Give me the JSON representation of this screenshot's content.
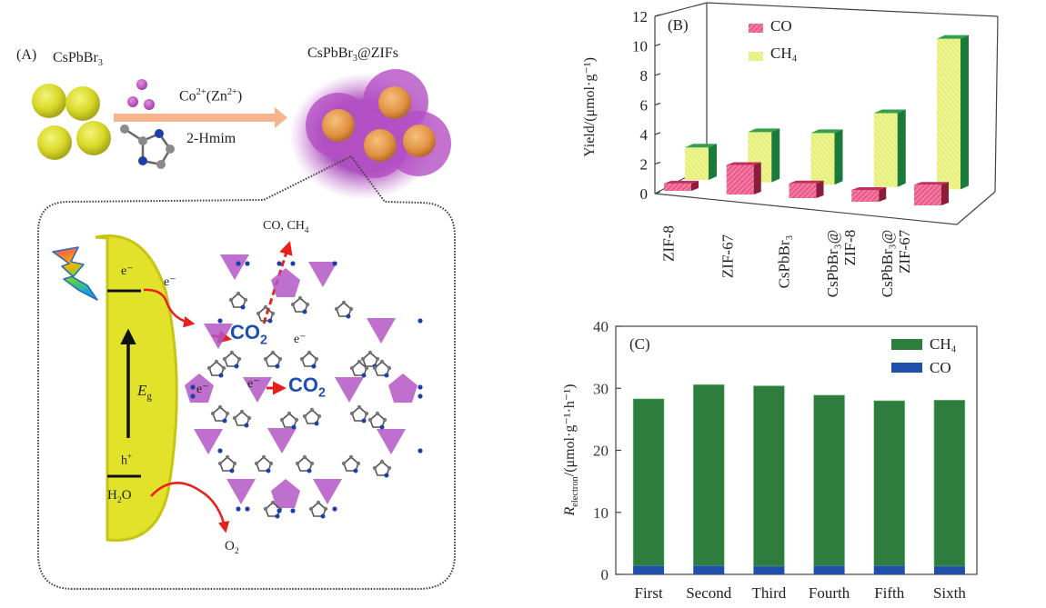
{
  "panel_a": {
    "label": "(A)",
    "reactant_label": "CsPbBr",
    "reactant_sub": "3",
    "product_label_pre": "CsPbBr",
    "product_sub": "3",
    "product_label_post": "@ZIFs",
    "reagent_metal": "Co",
    "reagent_metal_sup": "2+",
    "reagent_metal_alt_pre": "(Zn",
    "reagent_metal_alt_sup": "2+",
    "reagent_metal_alt_post": ")",
    "reagent_ligand": "2-Hmim",
    "mechanism": {
      "products_label_pre": "CO, CH",
      "products_sub": "4",
      "electron_cb": "e⁻",
      "electron_transfer": "e⁻",
      "electron_mof_1": "e⁻",
      "electron_mof_2": "e⁻",
      "electron_mof_3": "e⁻",
      "co2_1": "CO",
      "co2_1_sub": "2",
      "co2_2": "CO",
      "co2_2_sub": "2",
      "bandgap_symbol": "E",
      "bandgap_sub": "g",
      "hole": "h",
      "hole_sup": "+",
      "water_pre": "H",
      "water_sub": "2",
      "water_post": "O",
      "oxygen": "O",
      "oxygen_sub": "2",
      "light_icon": "lightning-bolt-icon"
    },
    "colors": {
      "perovskite": "#e2e22a",
      "zif_shell": "#b04cc0",
      "core": "#e59a4a",
      "arrow": "#f6b38e",
      "reaction_arrow": "#e8201c",
      "co2_text": "#1f4fb5",
      "tetrahedron": "#b456c4"
    }
  },
  "chart_data": [
    {
      "panel": "(B)",
      "type": "bar",
      "style": "3d-grouped",
      "title": "",
      "xlabel": "",
      "ylabel": "Yield/(μmol·g⁻¹)",
      "ylim": [
        0,
        12
      ],
      "yticks": [
        0,
        2,
        4,
        6,
        8,
        10,
        12
      ],
      "categories": [
        "ZIF-8",
        "ZIF-67",
        "CsPbBr₃",
        "CsPbBr₃@ ZIF-8",
        "CsPbBr₃@ ZIF-67"
      ],
      "category_lines": [
        [
          "ZIF-8"
        ],
        [
          "ZIF-67"
        ],
        [
          "CsPbBr₃"
        ],
        [
          "CsPbBr₃@",
          "ZIF-8"
        ],
        [
          "CsPbBr₃@",
          "ZIF-67"
        ]
      ],
      "series": [
        {
          "name": "CO",
          "color": "#e8457a",
          "values": [
            0.5,
            2.0,
            1.0,
            0.8,
            1.4
          ]
        },
        {
          "name": "CH₄",
          "color": "#e4ee7a",
          "side_color": "#1a7a3a",
          "values": [
            2.2,
            3.4,
            3.5,
            5.0,
            10.2
          ]
        }
      ],
      "legend": [
        "CO",
        "CH₄"
      ],
      "legend_position": "top-left",
      "grid": false
    },
    {
      "panel": "(C)",
      "type": "bar",
      "style": "stacked",
      "title": "",
      "xlabel": "",
      "ylabel_main": "R",
      "ylabel_sub": "electron",
      "ylabel_unit": "/(μmol·g⁻¹·h⁻¹)",
      "ylim": [
        0,
        40
      ],
      "yticks": [
        0,
        10,
        20,
        30,
        40
      ],
      "categories": [
        "First",
        "Second",
        "Third",
        "Fourth",
        "Fifth",
        "Sixth"
      ],
      "series": [
        {
          "name": "CO",
          "color": "#1f4fa8",
          "values": [
            1.4,
            1.4,
            1.3,
            1.4,
            1.4,
            1.3
          ]
        },
        {
          "name": "CH₄",
          "color": "#2e7d3e",
          "values": [
            26.9,
            29.2,
            29.1,
            27.5,
            26.6,
            26.8
          ]
        }
      ],
      "totals": [
        28.3,
        30.6,
        30.4,
        28.9,
        28.0,
        28.1
      ],
      "legend": [
        "CH₄",
        "CO"
      ],
      "legend_position": "top-right",
      "grid": false
    }
  ]
}
